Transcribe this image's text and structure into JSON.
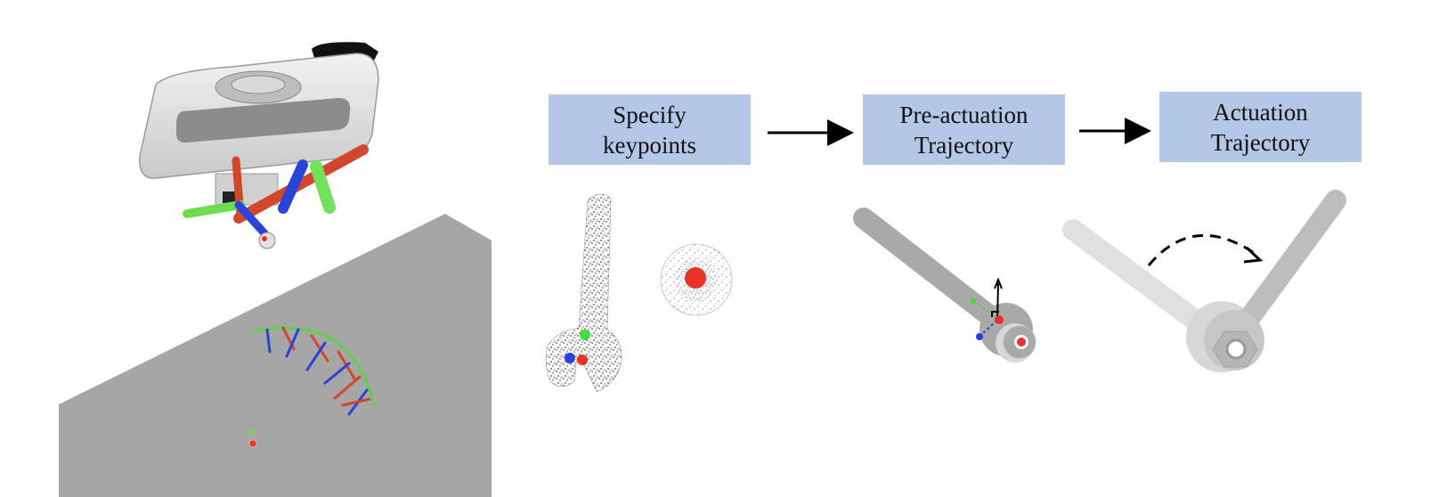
{
  "steps": [
    {
      "line1": "Specify",
      "line2": "keypoints"
    },
    {
      "line1": "Pre-actuation",
      "line2": "Trajectory"
    },
    {
      "line1": "Actuation",
      "line2": "Trajectory"
    }
  ],
  "colors": {
    "step_box": "#b4c7e7",
    "keypoint_red": "#e8322a",
    "keypoint_green": "#3fdc3f",
    "keypoint_blue": "#2a3ee8",
    "floor": "#a6a6a6",
    "wrench_dark": "#a9a9a9",
    "wrench_light": "#dcdcdc"
  }
}
